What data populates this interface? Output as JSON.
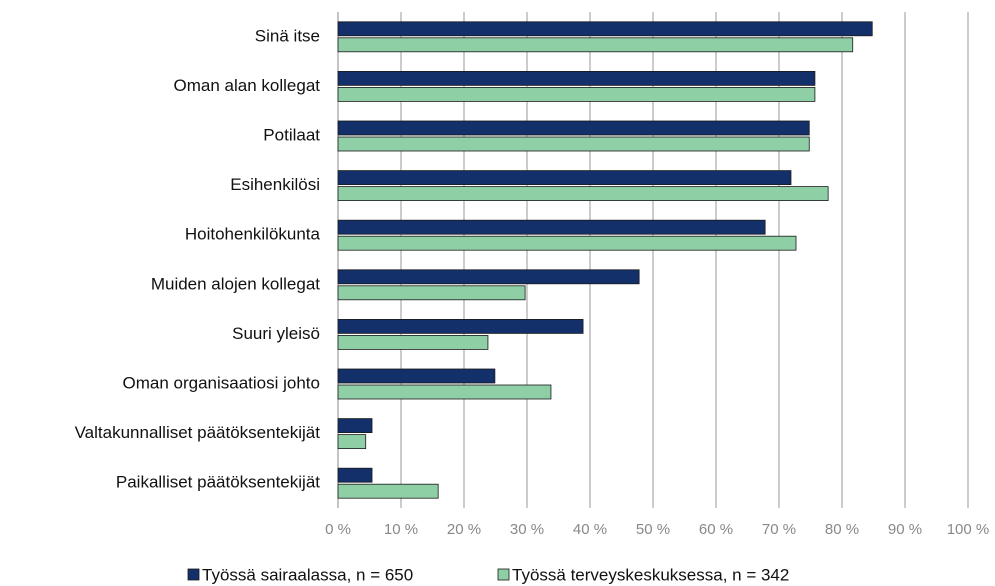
{
  "chart_data": {
    "type": "hbar",
    "categories": [
      "Sinä itse",
      "Oman alan kollegat",
      "Potilaat",
      "Esihenkilösi",
      "Hoitohenkilökunta",
      "Muiden alojen kollegat",
      "Suuri yleisö",
      "Oman organisaatiosi johto",
      "Valtakunnalliset päätöksentekijät",
      "Paikalliset päätöksentekijät"
    ],
    "series": [
      {
        "name": "Työssä sairaalassa, n = 650",
        "color": "#14306a",
        "values": [
          84.8,
          75.7,
          74.8,
          71.9,
          67.8,
          47.8,
          38.9,
          24.9,
          5.4,
          5.4
        ]
      },
      {
        "name": "Työssä terveyskeskuksessa, n = 342",
        "color": "#8fcfa6",
        "values": [
          81.7,
          75.7,
          74.8,
          77.8,
          72.7,
          29.7,
          23.8,
          33.8,
          4.4,
          15.9
        ]
      }
    ],
    "xlim": [
      0,
      100
    ],
    "xticks": [
      {
        "value": 0,
        "label": "0 %"
      },
      {
        "value": 10,
        "label": "10 %"
      },
      {
        "value": 20,
        "label": "20 %"
      },
      {
        "value": 30,
        "label": "30 %"
      },
      {
        "value": 40,
        "label": "40 %"
      },
      {
        "value": 50,
        "label": "50 %"
      },
      {
        "value": 60,
        "label": "60 %"
      },
      {
        "value": 70,
        "label": "70 %"
      },
      {
        "value": 80,
        "label": "80 %"
      },
      {
        "value": 90,
        "label": "90 %"
      },
      {
        "value": 100,
        "label": "100 %"
      }
    ],
    "grid": true,
    "legend": "bottom"
  }
}
